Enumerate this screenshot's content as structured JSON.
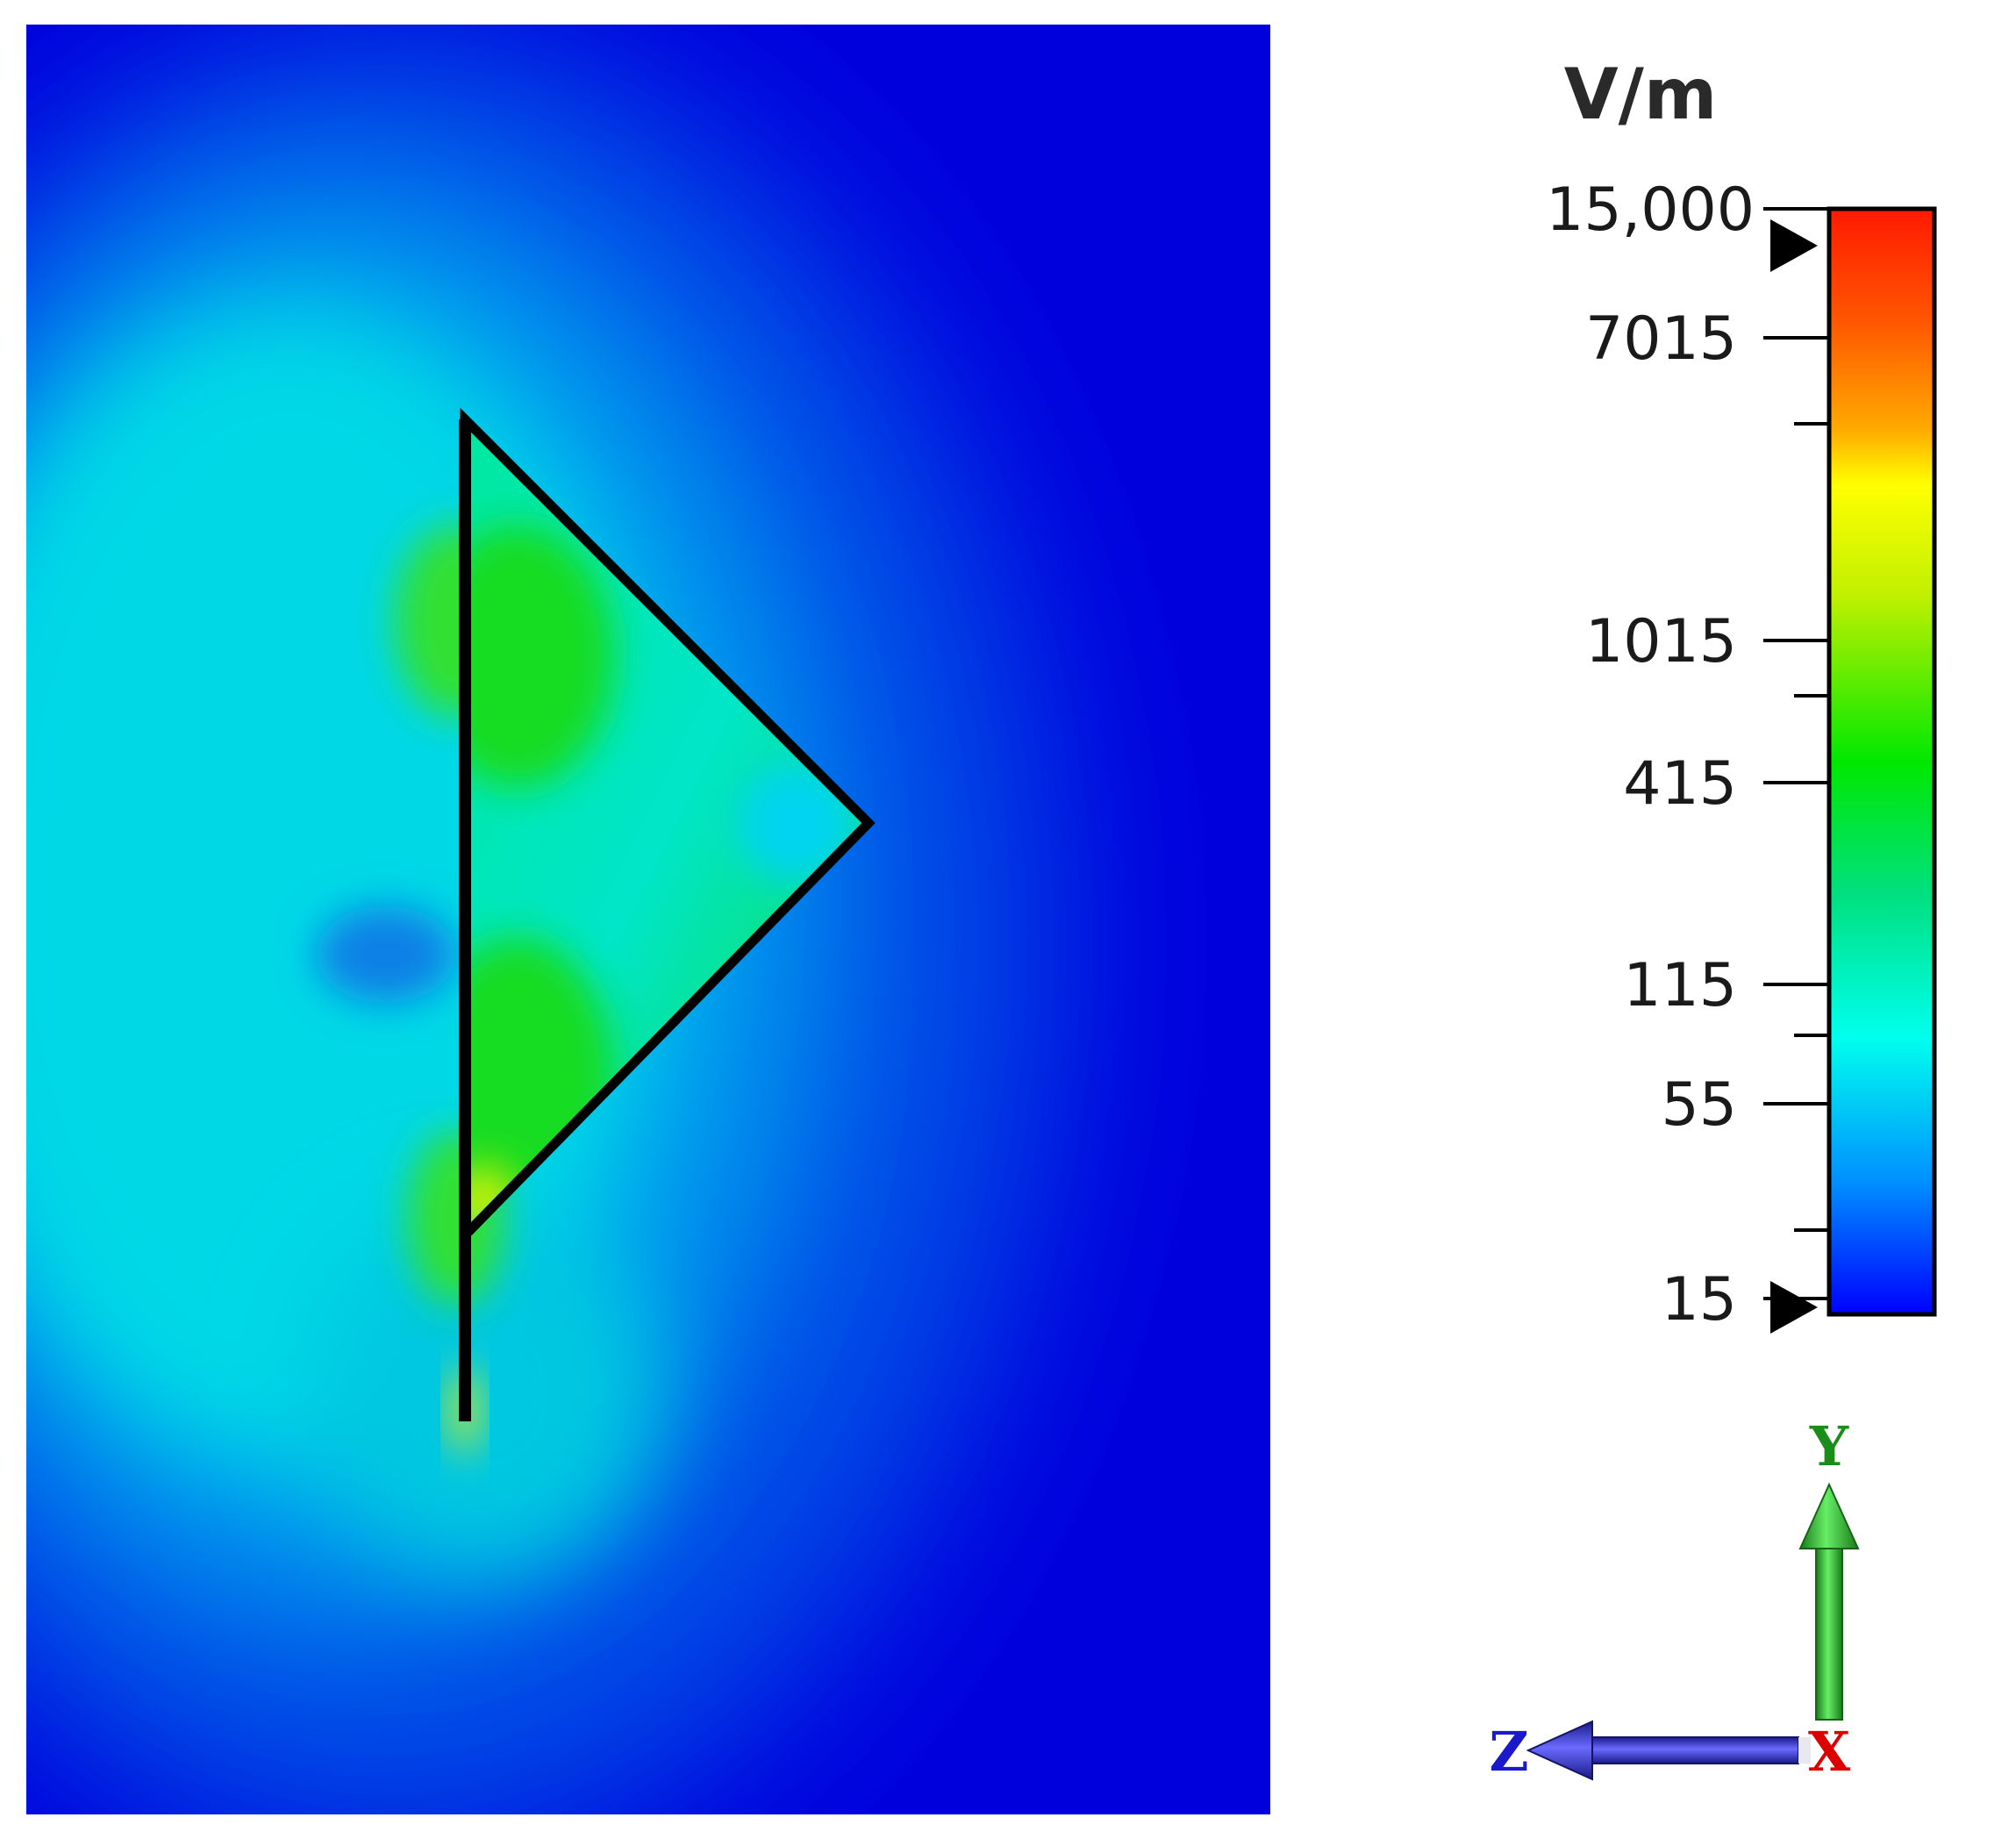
{
  "colorbar": {
    "unit": "V/m",
    "ticks": [
      "15,000",
      "7015",
      "1015",
      "415",
      "115",
      "55",
      "15"
    ],
    "colors": {
      "top": "#ff1a00",
      "orange": "#ff8c00",
      "yellow": "#ffff00",
      "green": "#00dd00",
      "cyan": "#00ffee",
      "bottom": "#0000ff"
    }
  },
  "axes": {
    "y_label": "Y",
    "z_label": "Z",
    "x_label": "X",
    "colors": {
      "y": "#1c8c1c",
      "z": "#1a1acc",
      "x": "#dd0000"
    }
  },
  "field": {
    "background_color": "#0000dd",
    "outline_color": "#000000"
  }
}
